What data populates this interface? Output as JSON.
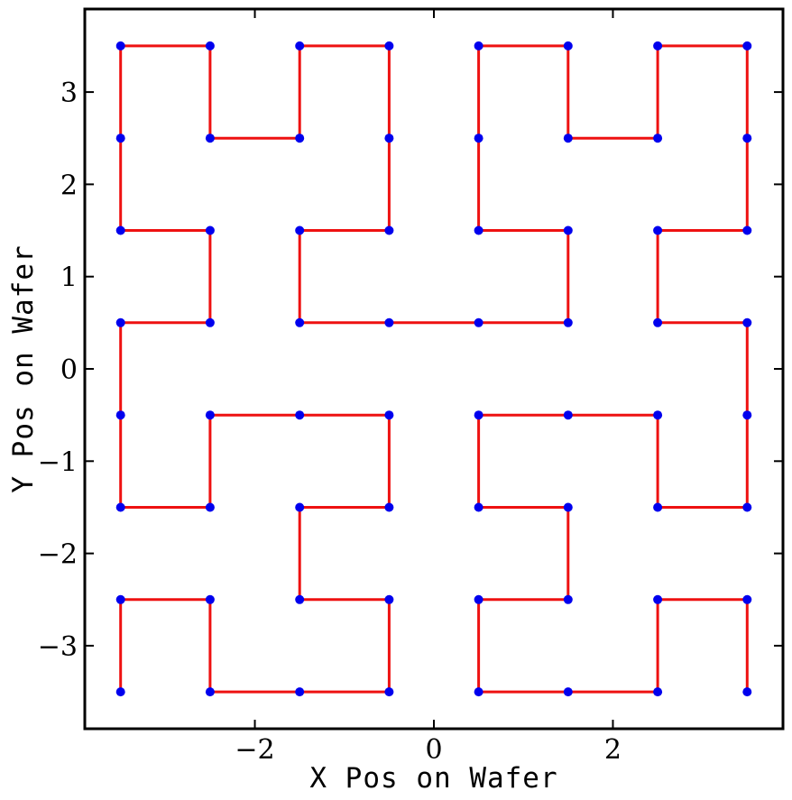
{
  "chart_data": {
    "type": "line",
    "title": "",
    "xlabel": "X Pos on Wafer",
    "ylabel": "Y Pos on Wafer",
    "xlim": [
      -3.9,
      3.9
    ],
    "ylim": [
      -3.9,
      3.9
    ],
    "xticks": [
      -2,
      0,
      2
    ],
    "yticks": [
      -3,
      -2,
      -1,
      0,
      1,
      2,
      3
    ],
    "xtick_labels": [
      "−2",
      "0",
      "2"
    ],
    "ytick_labels": [
      "−3",
      "−2",
      "−1",
      "0",
      "1",
      "2",
      "3"
    ],
    "grid": false,
    "legend": "none",
    "colors": {
      "path": "#ee1111",
      "points": "#0000ee",
      "axes": "#000000"
    },
    "series": [
      {
        "style": "line+markers",
        "x": [
          -3.5,
          -3.5,
          -2.5,
          -2.5,
          -1.5,
          -1.5,
          -0.5,
          -0.5,
          -0.5,
          -0.5,
          -1.5,
          -1.5,
          -1.5,
          -1.5,
          -2.5,
          -2.5,
          -3.5,
          -3.5,
          -3.5,
          -3.5,
          -2.5,
          -2.5,
          -1.5,
          -0.5,
          -0.5,
          -0.5,
          -1.5,
          -1.5,
          -1.5,
          -1.5,
          -0.5,
          -0.5,
          0.5,
          0.5,
          1.5,
          2.5,
          2.5,
          2.5,
          1.5,
          1.5,
          1.5,
          1.5,
          0.5,
          0.5,
          0.5,
          0.5,
          1.5,
          1.5,
          2.5,
          2.5,
          2.5,
          2.5,
          3.5,
          3.5,
          3.5,
          3.5,
          2.5,
          2.5,
          2.5,
          2.5,
          3.5,
          3.5,
          3.5,
          3.5
        ],
        "y": [
          -3.5,
          -2.5,
          -2.5,
          -3.5,
          -3.5,
          -3.5,
          -3.5,
          -2.5,
          -2.5,
          -2.5,
          -2.5,
          -1.5,
          -1.5,
          -1.5,
          -1.5,
          -1.5,
          -1.5,
          -0.5,
          0.5,
          0.5,
          0.5,
          1.5,
          1.5,
          1.5,
          2.5,
          3.5,
          3.5,
          2.5,
          2.5,
          2.5,
          2.5,
          2.5,
          2.5,
          2.5,
          2.5,
          2.5,
          2.5,
          2.5,
          2.5,
          2.5,
          2.5,
          2.5,
          2.5,
          2.5,
          2.5,
          2.5,
          2.5,
          2.5,
          2.5,
          2.5,
          2.5,
          2.5,
          2.5,
          2.5,
          2.5,
          2.5,
          2.5,
          2.5,
          2.5,
          2.5,
          2.5,
          2.5,
          2.5,
          2.5
        ]
      }
    ]
  }
}
